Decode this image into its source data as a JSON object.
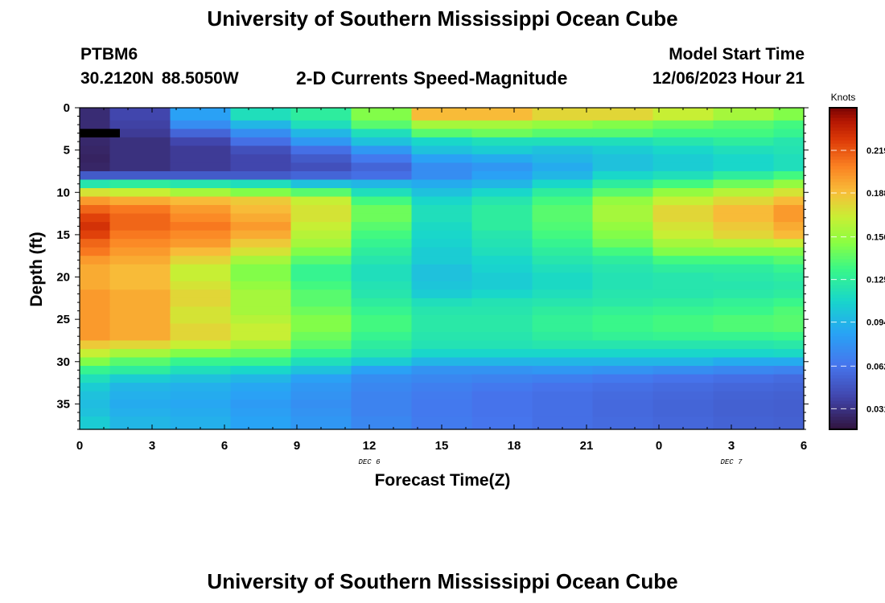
{
  "page": {
    "title": "University of Southern Mississippi Ocean Cube",
    "footer_title": "University of Southern Mississippi Ocean Cube",
    "station_id": "PTBM6",
    "station_coords": "30.2120N  88.5050W",
    "subtitle": "2-D Currents Speed-Magnitude",
    "model_start_label": "Model Start Time",
    "model_start_value": "12/06/2023 Hour 21"
  },
  "chart_data": {
    "type": "heatmap",
    "title": "2-D Currents Speed-Magnitude",
    "xlabel": "Forecast Time(Z)",
    "ylabel": "Depth (ft)",
    "x_tick_labels": [
      "0",
      "3",
      "6",
      "9",
      "12",
      "15",
      "18",
      "21",
      "0",
      "3",
      "6"
    ],
    "x_date_labels": [
      {
        "label": "DEC 6",
        "at_hour": 12
      },
      {
        "label": "DEC 7",
        "at_hour": 27
      }
    ],
    "x_range_hours": [
      0,
      30
    ],
    "y_tick_labels": [
      "0",
      "5",
      "10",
      "15",
      "20",
      "25",
      "30",
      "35"
    ],
    "y_range_ft": [
      0,
      38
    ],
    "colorbar": {
      "label": "Knots",
      "tick_labels": [
        "0.031",
        "0.062",
        "0.094",
        "0.125",
        "0.156",
        "0.188",
        "0.219"
      ],
      "range": [
        0.016,
        0.25
      ]
    },
    "time_hours": [
      0,
      2.5,
      5,
      7.5,
      10,
      12.5,
      15,
      17.5,
      20,
      22.5,
      25,
      27.5,
      30
    ],
    "depth_bins_ft": [
      0,
      1.5,
      2.5,
      3.5,
      4.5,
      5.5,
      6.5,
      7.5,
      8.5,
      9.5,
      10.5,
      11.5,
      12.5,
      13.5,
      14.5,
      15.5,
      16.5,
      17.5,
      18.5,
      19.5,
      20.5,
      21.5,
      22.5,
      23.5,
      24.5,
      25.5,
      26.5,
      27.5,
      28.5,
      29.5,
      30.5,
      31.5,
      32.5,
      33.5,
      34.5,
      35.5,
      36.5,
      38
    ],
    "speed_knots": [
      [
        0.028,
        0.04,
        0.085,
        0.115,
        0.125,
        0.15,
        0.19,
        0.19,
        0.18,
        0.18,
        0.17,
        0.16,
        0.15
      ],
      [
        0.028,
        0.038,
        0.075,
        0.095,
        0.115,
        0.14,
        0.16,
        0.16,
        0.155,
        0.15,
        0.145,
        0.14,
        0.135
      ],
      [
        0.02,
        0.035,
        0.055,
        0.075,
        0.095,
        0.115,
        0.14,
        0.145,
        0.14,
        0.14,
        0.135,
        0.135,
        0.13
      ],
      [
        0.026,
        0.03,
        0.04,
        0.06,
        0.08,
        0.1,
        0.11,
        0.115,
        0.115,
        0.115,
        0.12,
        0.125,
        0.12
      ],
      [
        0.025,
        0.03,
        0.035,
        0.045,
        0.06,
        0.08,
        0.1,
        0.105,
        0.1,
        0.105,
        0.11,
        0.115,
        0.118
      ],
      [
        0.024,
        0.03,
        0.035,
        0.04,
        0.05,
        0.065,
        0.085,
        0.09,
        0.095,
        0.1,
        0.105,
        0.11,
        0.115
      ],
      [
        0.025,
        0.03,
        0.035,
        0.04,
        0.045,
        0.055,
        0.075,
        0.08,
        0.09,
        0.1,
        0.105,
        0.11,
        0.115
      ],
      [
        0.05,
        0.05,
        0.05,
        0.05,
        0.055,
        0.06,
        0.075,
        0.085,
        0.095,
        0.11,
        0.115,
        0.125,
        0.135
      ],
      [
        0.12,
        0.125,
        0.12,
        0.115,
        0.1,
        0.095,
        0.09,
        0.095,
        0.11,
        0.125,
        0.135,
        0.145,
        0.155
      ],
      [
        0.175,
        0.17,
        0.16,
        0.15,
        0.14,
        0.115,
        0.1,
        0.11,
        0.125,
        0.14,
        0.155,
        0.165,
        0.175
      ],
      [
        0.2,
        0.195,
        0.19,
        0.185,
        0.17,
        0.135,
        0.11,
        0.12,
        0.135,
        0.155,
        0.17,
        0.18,
        0.19
      ],
      [
        0.215,
        0.21,
        0.2,
        0.19,
        0.175,
        0.145,
        0.115,
        0.125,
        0.14,
        0.16,
        0.18,
        0.19,
        0.2
      ],
      [
        0.225,
        0.215,
        0.205,
        0.195,
        0.175,
        0.145,
        0.115,
        0.125,
        0.14,
        0.16,
        0.18,
        0.19,
        0.2
      ],
      [
        0.23,
        0.215,
        0.21,
        0.2,
        0.17,
        0.14,
        0.112,
        0.125,
        0.138,
        0.155,
        0.175,
        0.185,
        0.195
      ],
      [
        0.225,
        0.21,
        0.205,
        0.195,
        0.165,
        0.135,
        0.11,
        0.12,
        0.135,
        0.15,
        0.17,
        0.18,
        0.19
      ],
      [
        0.215,
        0.205,
        0.2,
        0.185,
        0.16,
        0.13,
        0.108,
        0.118,
        0.13,
        0.145,
        0.16,
        0.165,
        0.17
      ],
      [
        0.21,
        0.2,
        0.19,
        0.175,
        0.15,
        0.125,
        0.105,
        0.115,
        0.125,
        0.135,
        0.15,
        0.15,
        0.15
      ],
      [
        0.2,
        0.195,
        0.18,
        0.16,
        0.14,
        0.12,
        0.105,
        0.11,
        0.12,
        0.125,
        0.135,
        0.135,
        0.14
      ],
      [
        0.195,
        0.19,
        0.17,
        0.15,
        0.13,
        0.115,
        0.1,
        0.108,
        0.115,
        0.12,
        0.125,
        0.125,
        0.13
      ],
      [
        0.195,
        0.19,
        0.17,
        0.15,
        0.13,
        0.115,
        0.1,
        0.105,
        0.112,
        0.118,
        0.12,
        0.122,
        0.125
      ],
      [
        0.195,
        0.19,
        0.175,
        0.155,
        0.135,
        0.118,
        0.102,
        0.105,
        0.112,
        0.118,
        0.12,
        0.12,
        0.122
      ],
      [
        0.2,
        0.195,
        0.18,
        0.16,
        0.14,
        0.12,
        0.105,
        0.11,
        0.115,
        0.12,
        0.12,
        0.122,
        0.125
      ],
      [
        0.2,
        0.195,
        0.18,
        0.16,
        0.14,
        0.125,
        0.115,
        0.118,
        0.12,
        0.122,
        0.125,
        0.128,
        0.132
      ],
      [
        0.2,
        0.195,
        0.175,
        0.16,
        0.145,
        0.13,
        0.12,
        0.12,
        0.125,
        0.128,
        0.13,
        0.132,
        0.138
      ],
      [
        0.2,
        0.195,
        0.175,
        0.165,
        0.15,
        0.135,
        0.122,
        0.122,
        0.128,
        0.132,
        0.135,
        0.138,
        0.14
      ],
      [
        0.2,
        0.195,
        0.18,
        0.17,
        0.15,
        0.135,
        0.122,
        0.122,
        0.128,
        0.132,
        0.135,
        0.138,
        0.14
      ],
      [
        0.2,
        0.195,
        0.18,
        0.17,
        0.145,
        0.13,
        0.12,
        0.12,
        0.125,
        0.128,
        0.13,
        0.13,
        0.132
      ],
      [
        0.185,
        0.18,
        0.17,
        0.16,
        0.14,
        0.125,
        0.118,
        0.118,
        0.12,
        0.12,
        0.12,
        0.12,
        0.122
      ],
      [
        0.17,
        0.16,
        0.15,
        0.145,
        0.13,
        0.12,
        0.11,
        0.11,
        0.11,
        0.11,
        0.11,
        0.11,
        0.112
      ],
      [
        0.15,
        0.14,
        0.13,
        0.13,
        0.115,
        0.105,
        0.095,
        0.095,
        0.095,
        0.095,
        0.095,
        0.09,
        0.09
      ],
      [
        0.13,
        0.125,
        0.115,
        0.11,
        0.1,
        0.085,
        0.078,
        0.078,
        0.08,
        0.078,
        0.075,
        0.072,
        0.07
      ],
      [
        0.115,
        0.105,
        0.1,
        0.095,
        0.085,
        0.075,
        0.072,
        0.07,
        0.068,
        0.065,
        0.062,
        0.06,
        0.058
      ],
      [
        0.105,
        0.095,
        0.092,
        0.088,
        0.08,
        0.072,
        0.068,
        0.065,
        0.062,
        0.06,
        0.058,
        0.056,
        0.055
      ],
      [
        0.1,
        0.092,
        0.09,
        0.085,
        0.078,
        0.07,
        0.066,
        0.062,
        0.06,
        0.058,
        0.056,
        0.054,
        0.053
      ],
      [
        0.098,
        0.09,
        0.088,
        0.082,
        0.076,
        0.07,
        0.065,
        0.062,
        0.06,
        0.057,
        0.055,
        0.053,
        0.052
      ],
      [
        0.1,
        0.092,
        0.09,
        0.084,
        0.078,
        0.07,
        0.065,
        0.062,
        0.06,
        0.057,
        0.055,
        0.053,
        0.052
      ],
      [
        0.105,
        0.095,
        0.092,
        0.086,
        0.08,
        0.072,
        0.066,
        0.063,
        0.06,
        0.058,
        0.056,
        0.054,
        0.053
      ]
    ],
    "missing_cells": [
      {
        "depth_ft": 3,
        "hours": 1.25,
        "color": "#000000"
      }
    ]
  }
}
